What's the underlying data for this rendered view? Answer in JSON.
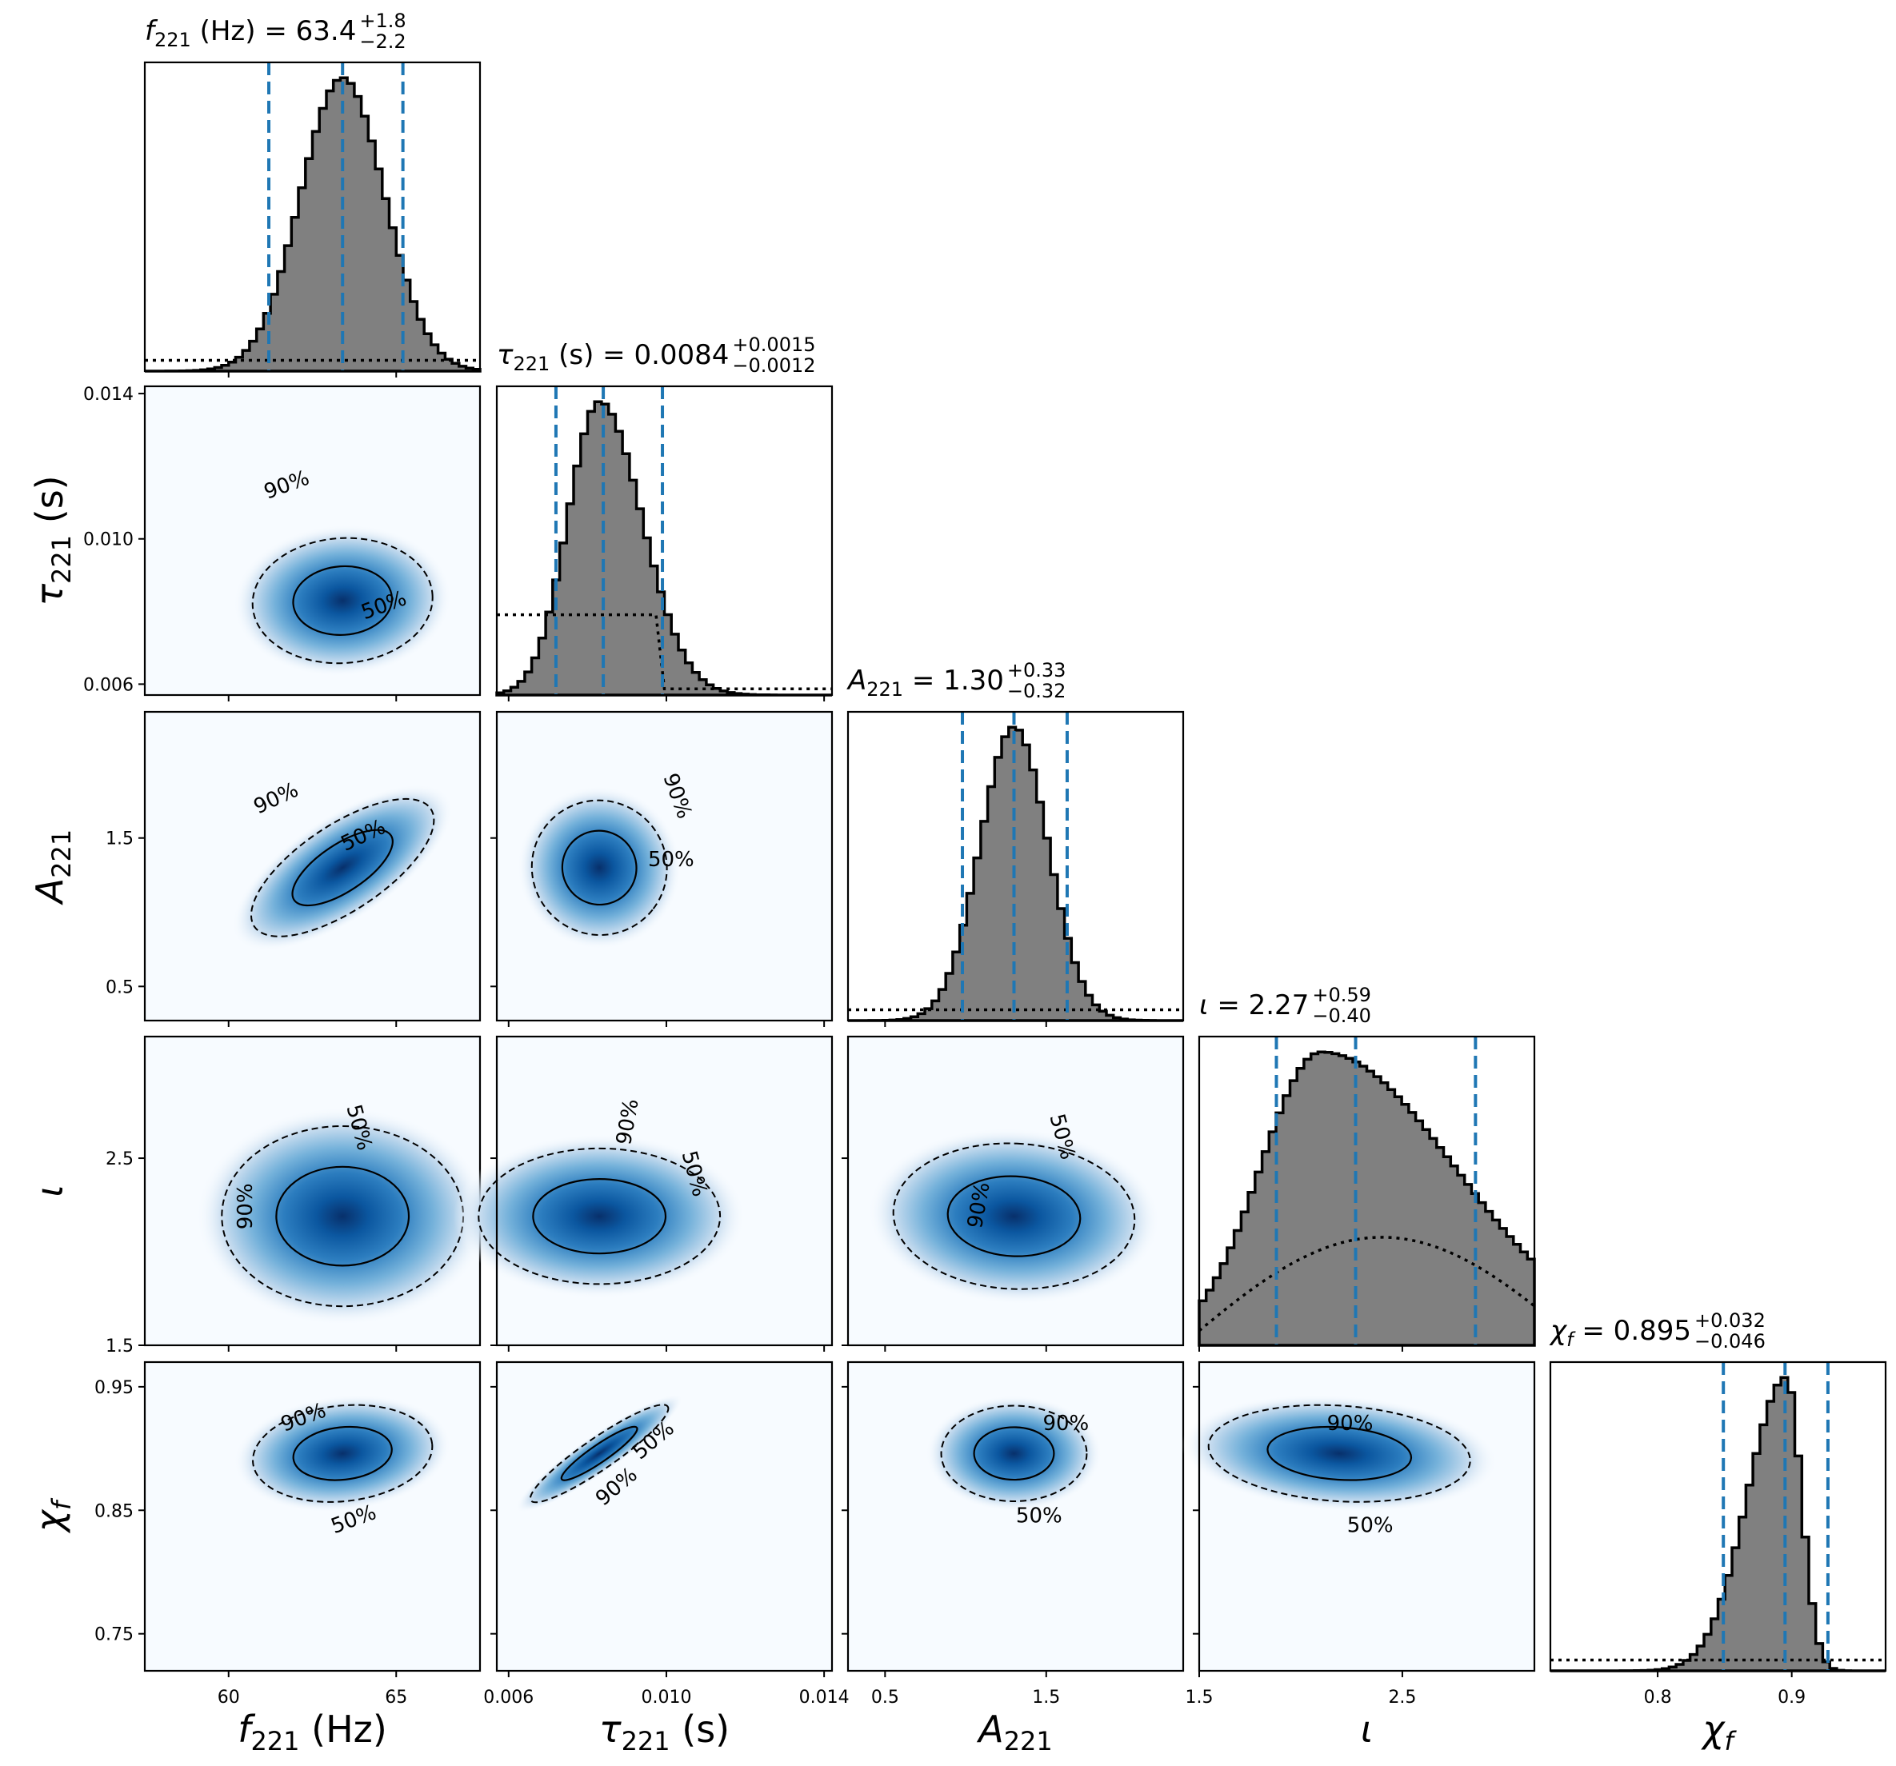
{
  "chart_data": {
    "type": "corner",
    "parameters": [
      {
        "key": "f221",
        "symbol": "f",
        "subscript": "221",
        "unit": "(Hz)",
        "axis_label": "f221 (Hz)",
        "title": "f221 (Hz) = 63.4 +1.8 −2.2",
        "median": 63.4,
        "err_plus": "+1.8",
        "err_minus": "−2.2",
        "median_text": "63.4",
        "range": [
          57.5,
          67.5
        ],
        "ticks": [
          60,
          65
        ],
        "tick_labels": [
          "60",
          "65"
        ],
        "hist_peak": 63.4,
        "hist_sigma": 1.25,
        "hist_skew": 0,
        "quantiles": [
          61.2,
          63.4,
          65.2
        ],
        "prior": "flat"
      },
      {
        "key": "tau221",
        "symbol": "τ",
        "subscript": "221",
        "unit": "(s)",
        "axis_label": "τ221 (s)",
        "title": "τ221 (s) = 0.0084 +0.0015 −0.0012",
        "median": 0.0084,
        "err_plus": "+0.0015",
        "err_minus": "−0.0012",
        "median_text": "0.0084",
        "range": [
          0.0057,
          0.0142
        ],
        "ticks": [
          0.006,
          0.01,
          0.014
        ],
        "tick_labels": [
          "0.006",
          "0.010",
          "0.014"
        ],
        "hist_peak": 0.0083,
        "hist_sigma": 0.0008,
        "hist_skew": 0.35,
        "quantiles": [
          0.0072,
          0.0084,
          0.0099
        ],
        "prior": "step"
      },
      {
        "key": "A221",
        "symbol": "A",
        "subscript": "221",
        "unit": "",
        "axis_label": "A221",
        "title": "A221 = 1.30 +0.33 −0.32",
        "median": 1.3,
        "err_plus": "+0.33",
        "err_minus": "−0.32",
        "median_text": "1.30",
        "range": [
          0.27,
          2.35
        ],
        "ticks": [
          0.5,
          1.5
        ],
        "tick_labels": [
          "0.5",
          "1.5"
        ],
        "hist_peak": 1.3,
        "hist_sigma": 0.21,
        "hist_skew": 0,
        "quantiles": [
          0.98,
          1.3,
          1.63
        ],
        "prior": "flat"
      },
      {
        "key": "iota",
        "symbol": "ι",
        "subscript": "",
        "unit": "",
        "axis_label": "ι",
        "title": "ι = 2.27 +0.59 −0.40",
        "median": 2.27,
        "err_plus": "+0.59",
        "err_minus": "−0.40",
        "median_text": "2.27",
        "range": [
          1.5,
          3.15
        ],
        "ticks": [
          1.5,
          2.5
        ],
        "tick_labels": [
          "1.5",
          "2.5"
        ],
        "hist_peak": 2.1,
        "hist_sigma": 0.3,
        "hist_skew": 1.2,
        "quantiles": [
          1.88,
          2.27,
          2.86
        ],
        "prior": "sine"
      },
      {
        "key": "chi_f",
        "symbol": "χ",
        "subscript": "f",
        "unit": "",
        "axis_label": "χf",
        "title": "χf = 0.895 +0.032 −0.046",
        "median": 0.895,
        "err_plus": "+0.032",
        "err_minus": "−0.046",
        "median_text": "0.895",
        "range": [
          0.72,
          0.97
        ],
        "ticks": [
          0.75,
          0.85,
          0.95
        ],
        "tick_labels": [
          "0.75",
          "0.85",
          "0.95"
        ],
        "x_ticks": [
          0.8,
          0.9
        ],
        "x_tick_labels": [
          "0.8",
          "0.9"
        ],
        "hist_peak": 0.896,
        "hist_sigma": 0.018,
        "hist_skew": -0.6,
        "quantiles": [
          0.849,
          0.895,
          0.927
        ],
        "prior": "flat"
      }
    ],
    "contours": [
      {
        "row": 1,
        "col": 0,
        "rho": 0.05
      },
      {
        "row": 2,
        "col": 0,
        "rho": 0.72
      },
      {
        "row": 2,
        "col": 1,
        "rho": -0.05
      },
      {
        "row": 3,
        "col": 0,
        "rho": 0.0
      },
      {
        "row": 3,
        "col": 1,
        "rho": 0.0
      },
      {
        "row": 3,
        "col": 2,
        "rho": 0.05
      },
      {
        "row": 4,
        "col": 0,
        "rho": 0.15
      },
      {
        "row": 4,
        "col": 1,
        "rho": 0.93
      },
      {
        "row": 4,
        "col": 2,
        "rho": 0.0
      },
      {
        "row": 4,
        "col": 3,
        "rho": -0.15
      }
    ],
    "contour_levels": [
      "50%",
      "90%"
    ],
    "colors": {
      "hist_fill": "#808080",
      "hist_edge": "#000000",
      "quantile_line": "#1f77b4",
      "density_high": "#08519c",
      "density_low": "#f7fbff"
    }
  }
}
